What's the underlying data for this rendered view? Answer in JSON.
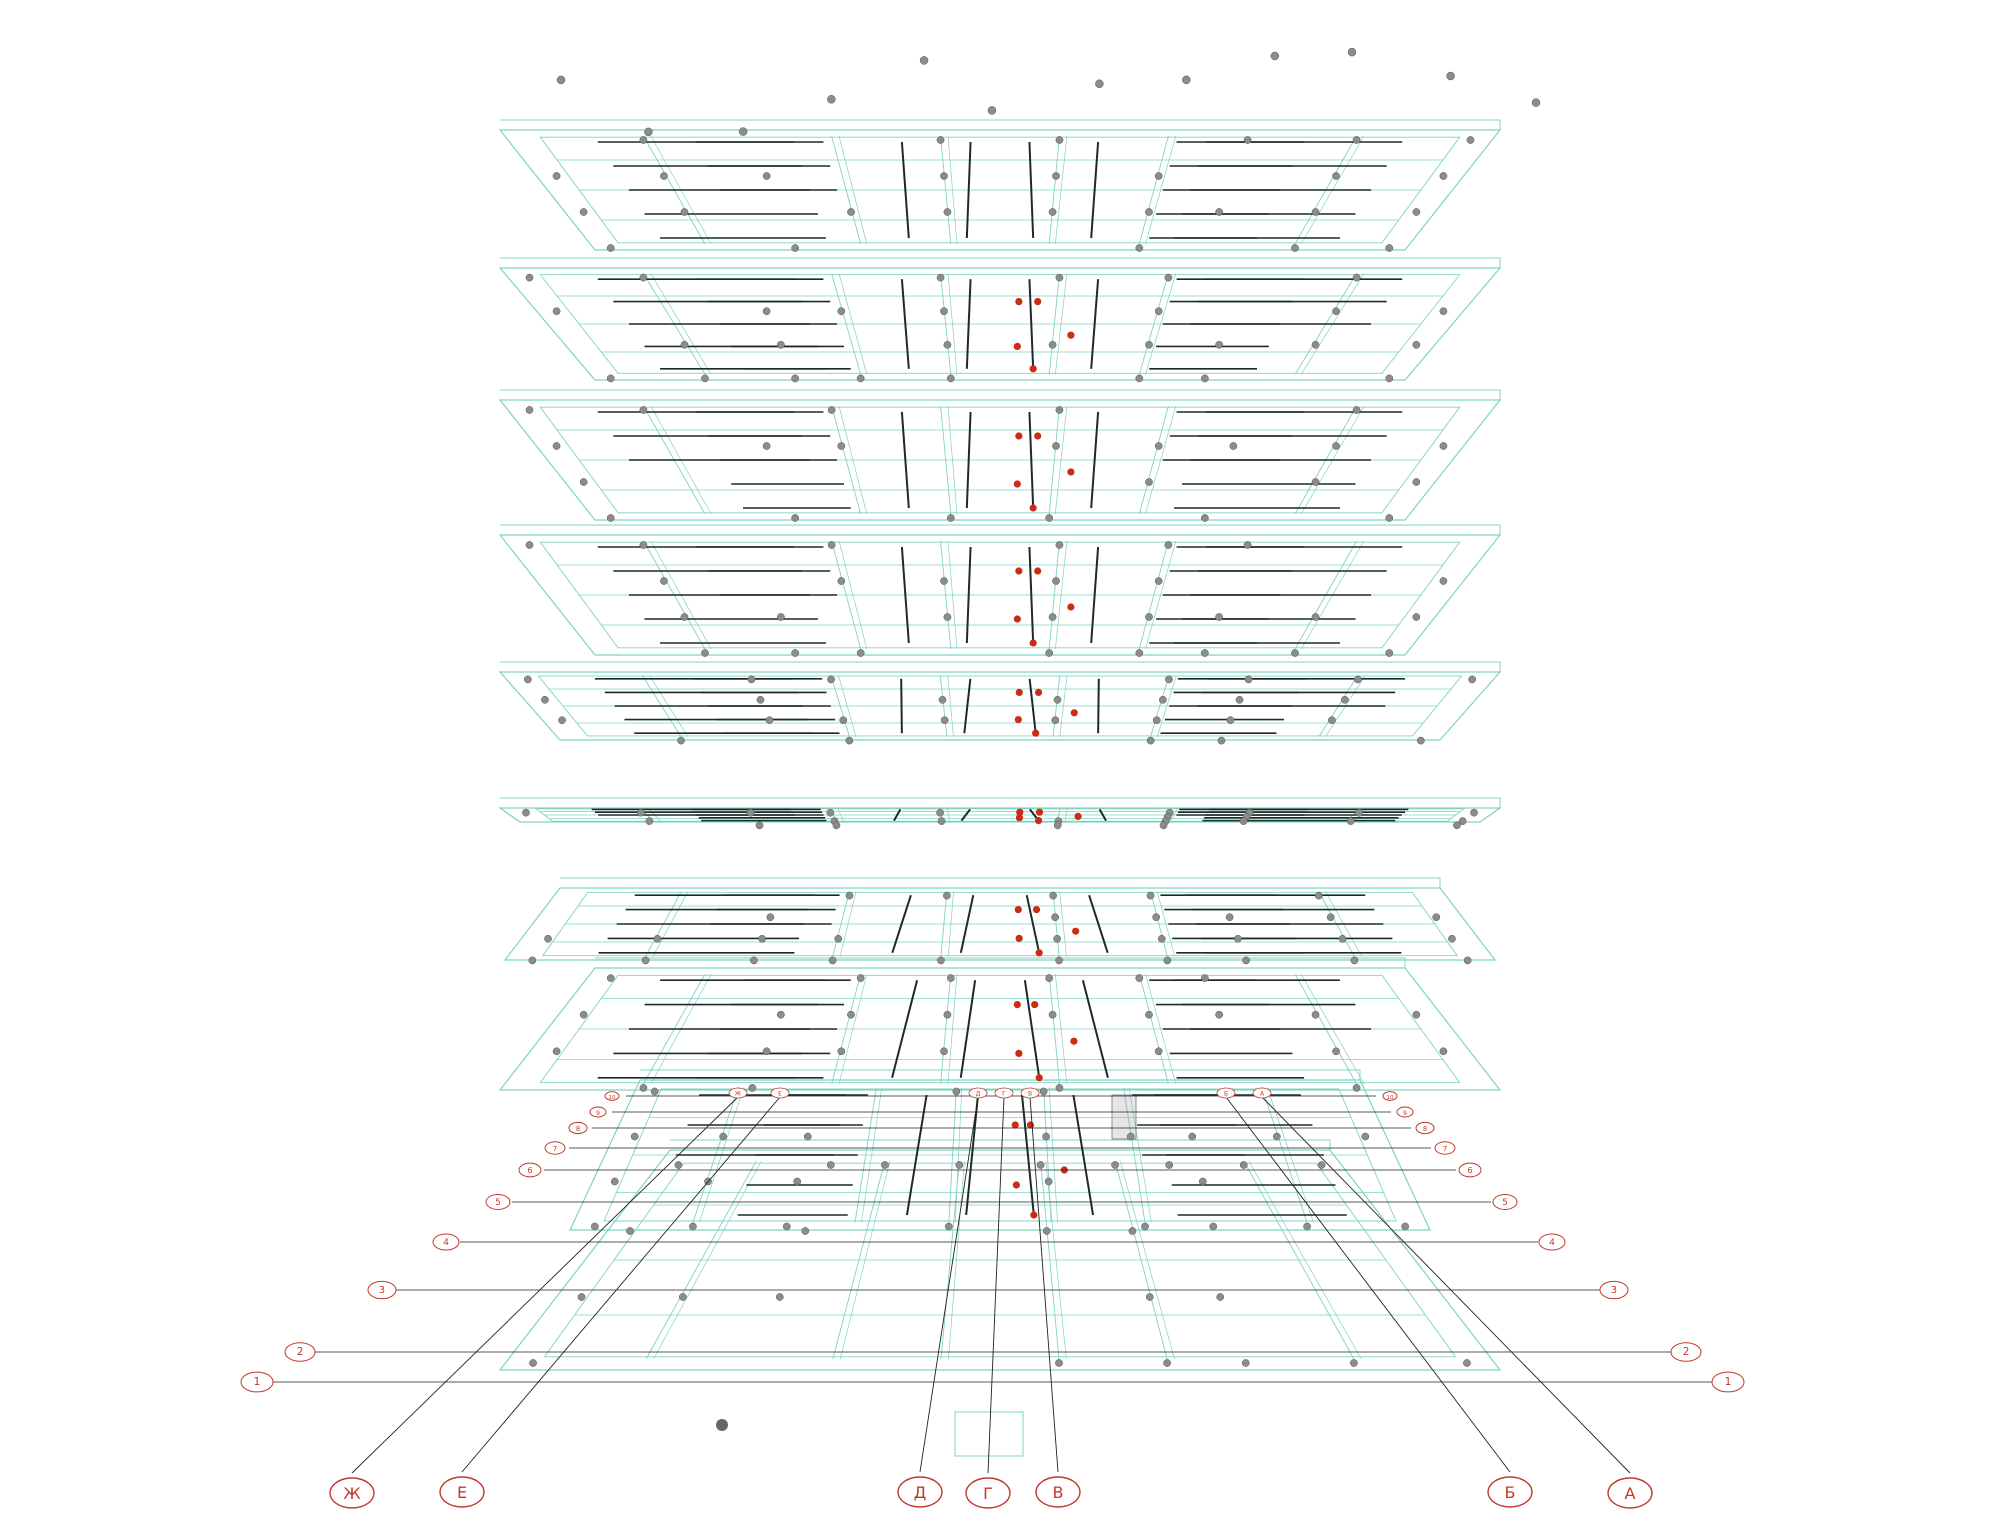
{
  "diagram": {
    "colors": {
      "frame": "#7fd3c3",
      "beam": "#1b2b2b",
      "node_gray": "#8c8c8c",
      "node_red": "#cc2b14",
      "leader": "#222222",
      "axis_bubble_stroke": "#c0392b",
      "axis_label": "#c0392b"
    },
    "axes_letters": [
      "Ж",
      "Е",
      "Д",
      "Г",
      "В",
      "Б",
      "А"
    ],
    "axes_numbers_left": [
      "1",
      "2",
      "3",
      "4",
      "5",
      "6",
      "7",
      "8",
      "9",
      "10"
    ],
    "axes_numbers_right": [
      "1",
      "2",
      "3",
      "4",
      "5",
      "6",
      "7",
      "8",
      "9",
      "10"
    ],
    "upper_axis_tags": [
      "Ж",
      "Е",
      "Д",
      "Г",
      "В",
      "Б",
      "А"
    ]
  }
}
